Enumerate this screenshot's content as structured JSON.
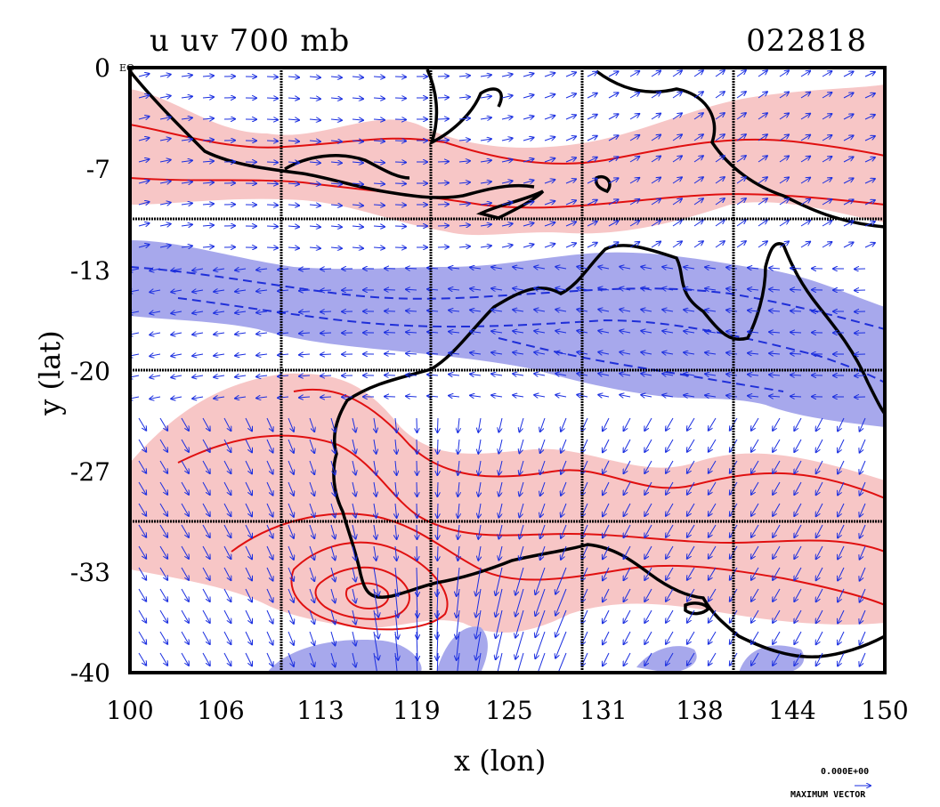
{
  "title_left": "u uv 700 mb",
  "title_right": "022818",
  "x_axis_label": "x (lon)",
  "y_axis_label": "y (lat)",
  "x_ticks": [
    "100",
    "106",
    "113",
    "119",
    "125",
    "131",
    "138",
    "144",
    "150"
  ],
  "y_ticks": [
    "0",
    "-7",
    "-13",
    "-20",
    "-27",
    "-33",
    "-40"
  ],
  "eq_tag": "EQ",
  "reference_vector": {
    "value": "0.000E+00",
    "label": "MAXIMUM VECTOR"
  },
  "colors": {
    "positive_fill": "#f7c6c6",
    "positive_line": "#e01010",
    "negative_fill": "#a7a8ec",
    "negative_line": "#1f2fd8",
    "coast": "#000000",
    "vector": "#1a2ee0"
  },
  "chart_data": {
    "type": "heatmap",
    "title": "u uv 700 mb",
    "xlabel": "x (lon)",
    "ylabel": "y (lat)",
    "xlim": [
      100,
      150
    ],
    "ylim": [
      -40,
      0
    ],
    "x_ticks": [
      100,
      106,
      113,
      119,
      125,
      131,
      138,
      144,
      150
    ],
    "y_ticks": [
      0,
      -7,
      -13,
      -20,
      -27,
      -33,
      -40
    ],
    "grid": true,
    "overlay": "wind vectors"
  }
}
